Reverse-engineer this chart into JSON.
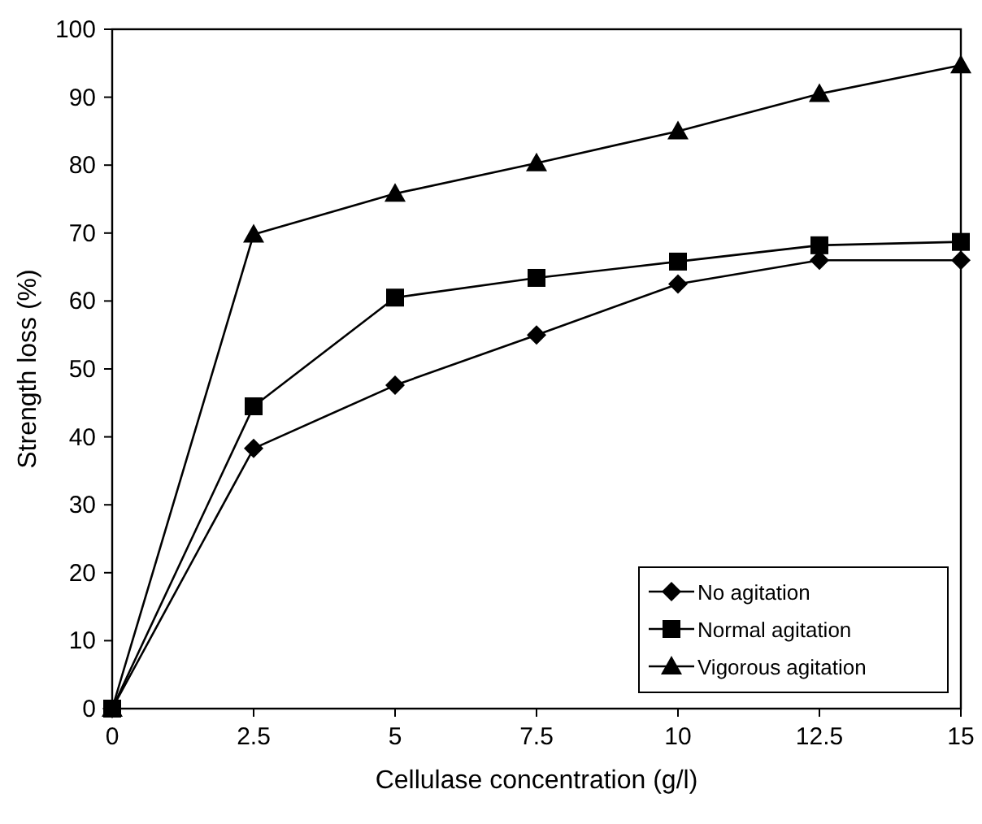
{
  "chart_data": {
    "type": "line",
    "xlabel": "Cellulase concentration (g/l)",
    "ylabel": "Strength loss (%)",
    "x": [
      0,
      2.5,
      5,
      7.5,
      10,
      12.5,
      15
    ],
    "xlim": [
      0,
      15
    ],
    "xticks": [
      0,
      2.5,
      5,
      7.5,
      10,
      12.5,
      15
    ],
    "ylim": [
      0,
      100
    ],
    "yticks": [
      0,
      10,
      20,
      30,
      40,
      50,
      60,
      70,
      80,
      90,
      100
    ],
    "grid": false,
    "legend": "bottom right",
    "line_style": "solid",
    "series": [
      {
        "name": "No agitation",
        "color": "#000000",
        "marker": "diamond",
        "values": [
          0,
          38.3,
          47.6,
          55,
          62.5,
          66,
          66
        ]
      },
      {
        "name": "Normal agitation",
        "color": "#000000",
        "marker": "square",
        "values": [
          0,
          44.5,
          60.5,
          63.4,
          65.8,
          68.2,
          68.7
        ]
      },
      {
        "name": "Vigorous agitation",
        "color": "#000000",
        "marker": "triangle",
        "values": [
          0,
          69.8,
          75.8,
          80.3,
          85,
          90.5,
          94.7
        ]
      }
    ]
  }
}
